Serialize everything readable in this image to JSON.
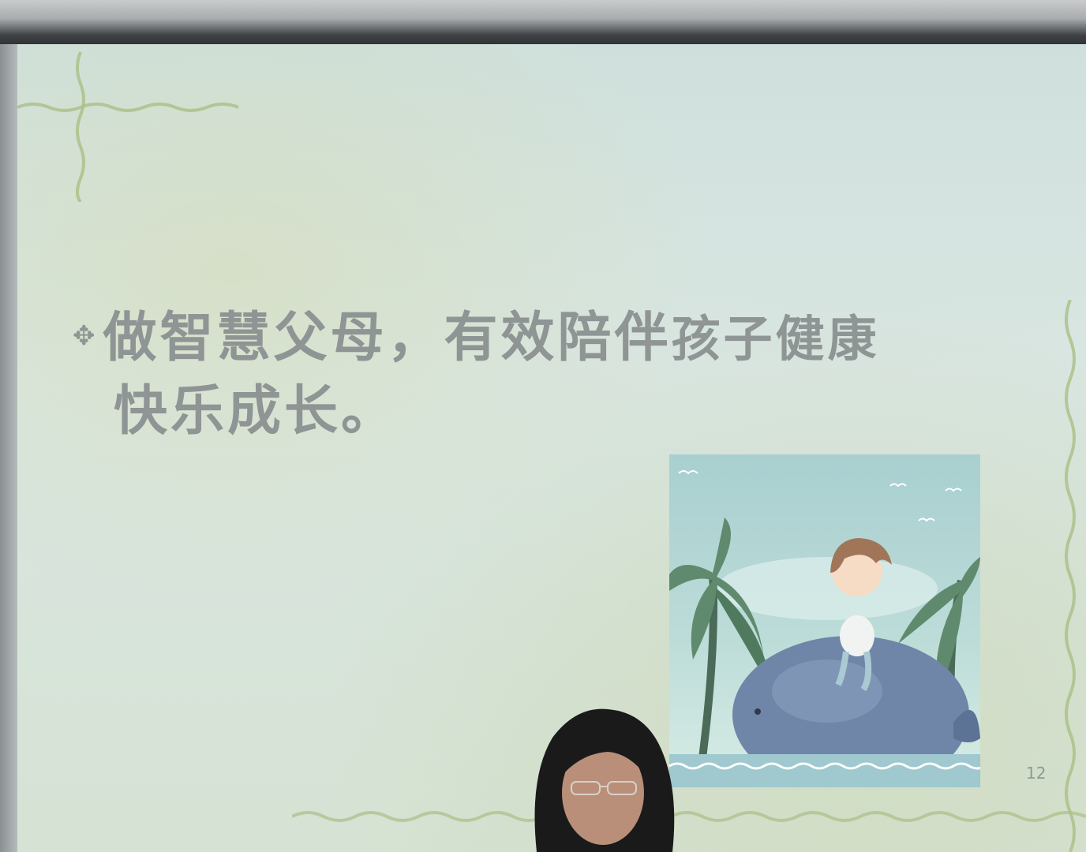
{
  "slide": {
    "bullet_symbol": "✥",
    "text_line1_a": "做智慧父母，有效陪伴",
    "text_line1_b": "孩子健康",
    "text_line2": "快乐成长。",
    "page_number": "12"
  },
  "colors": {
    "slide_text": "#8f9494",
    "deco_vine": "#a9bf86",
    "whale": "#6f86a8",
    "palm": "#5f8a6e"
  },
  "illustration": {
    "subject": "cartoon child sitting on a whale with palm trees"
  },
  "presenter": {
    "subject": "person with dark hair and glasses in foreground"
  }
}
